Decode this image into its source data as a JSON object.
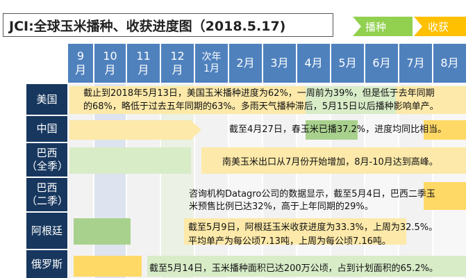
{
  "title": "JCI:全球玉米播种、收获进度图（2018.5.17)",
  "legend": {
    "sowing": "播种",
    "harvest": "收获"
  },
  "colors": {
    "header": "#4f81bd",
    "country": "#17375e",
    "sowing": "#a9d18e",
    "harvest": "#ffd966"
  },
  "months": [
    {
      "top": "9",
      "bottom": "月"
    },
    {
      "top": "10",
      "bottom": "月"
    },
    {
      "top": "11",
      "bottom": "月"
    },
    {
      "top": "12",
      "bottom": "月"
    },
    {
      "top": "次年",
      "bottom": "1月"
    },
    {
      "top": "2月",
      "bottom": ""
    },
    {
      "top": "3月",
      "bottom": ""
    },
    {
      "top": "4月",
      "bottom": ""
    },
    {
      "top": "5月",
      "bottom": ""
    },
    {
      "top": "6月",
      "bottom": ""
    },
    {
      "top": "7月",
      "bottom": ""
    },
    {
      "top": "8月",
      "bottom": ""
    }
  ],
  "countries": [
    {
      "name": "美国",
      "line1": "截止到2018年5月13日，美国玉米播种进度为62%，一周前为39%，但是低于去年同期",
      "line2": "的68%，略低于过去五年同期的63%。多雨天气播种滞后，5月15日以后播种影响单产。"
    },
    {
      "name": "中国",
      "line1": "截至4月27日，春玉米已播37.2%，进度均同比相当。",
      "line2": ""
    },
    {
      "name": "巴西\n（全季）",
      "line1": "南美玉米出口从7月份开始增加，8月-10月达到高峰。",
      "line2": ""
    },
    {
      "name": "巴西\n（二季）",
      "line1": "咨询机构Datagro公司的数据显示，截至5月4日，巴西二季玉",
      "line2": "米预售比例已达32%，高于上年同期的29%。"
    },
    {
      "name": "阿根廷",
      "line1": "截至5月9日，阿根廷玉米收获进度为33.3%，上周为32.5%。",
      "line2": "平均单产为每公顷7.13吨，上周为每公顷7.16吨。"
    },
    {
      "name": "俄罗斯",
      "line1": "截至5月14日，玉米播种面积已达200万公顷，占到计划面积的65.2%。",
      "line2": ""
    }
  ]
}
